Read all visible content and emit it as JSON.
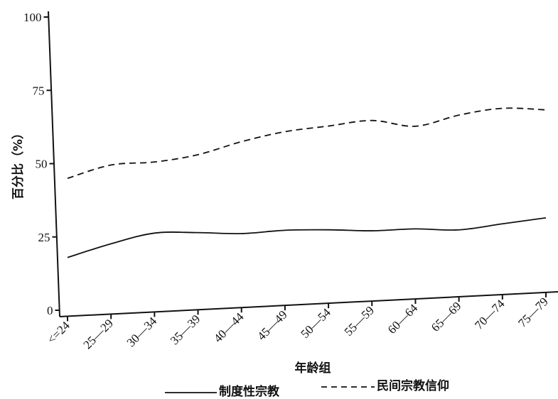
{
  "chart_data": {
    "type": "line",
    "xlabel": "年龄组",
    "ylabel": "百分比（%）",
    "categories": [
      "<=24",
      "25—29",
      "30—34",
      "35—39",
      "40—44",
      "45—49",
      "50—54",
      "55—59",
      "60—64",
      "65—69",
      "70—74",
      "75—79"
    ],
    "yticks": [
      "0",
      "25",
      "50",
      "75",
      "100"
    ],
    "ylim": [
      0,
      100
    ],
    "grid": false,
    "legend_position": "bottom",
    "series": [
      {
        "name": "制度性宗教",
        "style": "solid",
        "values": [
          18,
          22.5,
          26,
          26,
          25.5,
          26.5,
          26.5,
          26,
          26.5,
          26,
          28,
          30
        ]
      },
      {
        "name": "民间宗教信仰",
        "style": "dashed",
        "values": [
          45,
          49.5,
          50.5,
          53,
          57.5,
          61,
          63,
          65,
          63,
          67,
          69.5,
          69
        ]
      }
    ]
  }
}
